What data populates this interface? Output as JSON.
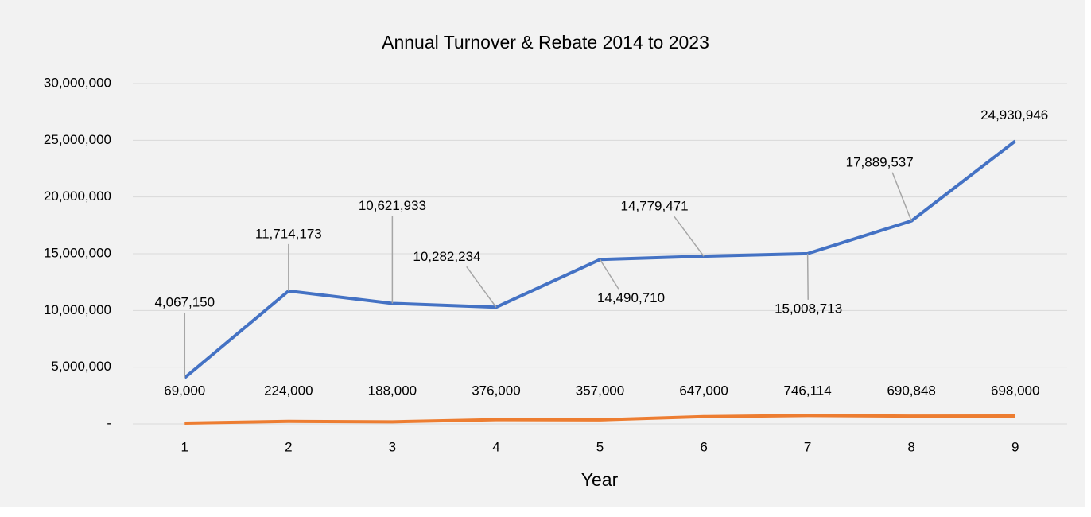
{
  "chart_data": {
    "type": "line",
    "title": "Annual Turnover & Rebate 2014 to 2023",
    "x_label": "Year",
    "categories": [
      "1",
      "2",
      "3",
      "4",
      "5",
      "6",
      "7",
      "8",
      "9"
    ],
    "series": [
      {
        "color": "#4472c4",
        "values": [
          4067150,
          11714173,
          10621933,
          10282234,
          14490710,
          14779471,
          15008713,
          17889537,
          24930946
        ],
        "value_labels": [
          "4,067,150",
          "11,714,173",
          "10,621,933",
          "10,282,234",
          "14,490,710",
          "14,779,471",
          "15,008,713",
          "17,889,537",
          "24,930,946"
        ]
      },
      {
        "color": "#ed7d31",
        "values": [
          69000,
          224000,
          188000,
          376000,
          357000,
          647000,
          746114,
          690848,
          698000
        ],
        "value_labels": [
          "69,000",
          "224,000",
          "188,000",
          "376,000",
          "357,000",
          "647,000",
          "746,114",
          "690,848",
          "698,000"
        ]
      }
    ],
    "ylim": [
      0,
      30000000
    ],
    "yticks": [
      {
        "value": 0,
        "label": "-"
      },
      {
        "value": 5000000,
        "label": "5,000,000"
      },
      {
        "value": 10000000,
        "label": "10,000,000"
      },
      {
        "value": 15000000,
        "label": "15,000,000"
      },
      {
        "value": 20000000,
        "label": "20,000,000"
      },
      {
        "value": 25000000,
        "label": "25,000,000"
      },
      {
        "value": 30000000,
        "label": "30,000,000"
      }
    ],
    "grid": true
  }
}
